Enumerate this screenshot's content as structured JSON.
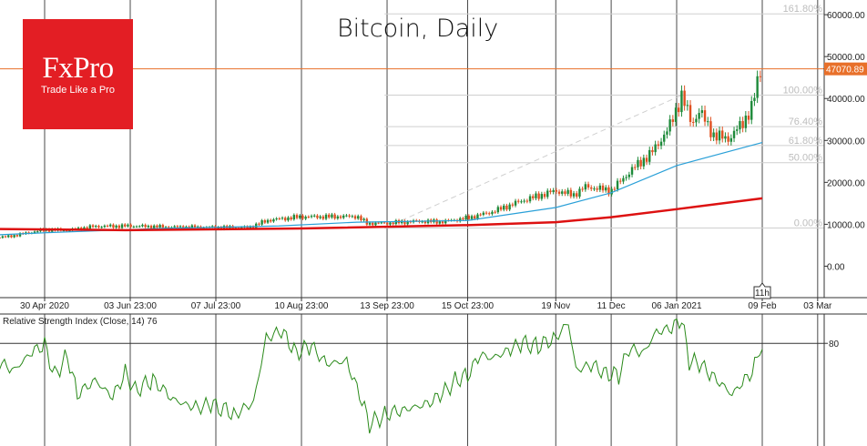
{
  "title": "Bitcoin, Daily",
  "logo": {
    "brand": "FxPro",
    "tagline": "Trade Like a Pro"
  },
  "colors": {
    "up": "#1e8a3a",
    "down": "#e05020",
    "price_line": "#e8702a",
    "ma_fast": "#2aa0d8",
    "ma_slow": "#dd1111",
    "rsi": "#2a8a1a",
    "logo_bg": "#e31e24"
  },
  "chart_data": [
    {
      "type": "candlestick",
      "symbol": "Bitcoin",
      "timeframe": "Daily",
      "x_tick_labels": [
        "30 Apr 2020",
        "03 Jun 23:00",
        "07 Jul 23:00",
        "10 Aug 23:00",
        "13 Sep 23:00",
        "15 Oct 23:00",
        "19 Nov",
        "11 Dec",
        "06 Jan 2021",
        "09 Feb",
        "03 Mar"
      ],
      "y_tick_values": [
        0,
        10000,
        20000,
        30000,
        40000,
        50000,
        60000
      ],
      "y_tick_labels": [
        "0.00",
        "10000.00",
        "20000.00",
        "30000.00",
        "40000.00",
        "50000.00",
        "60000.00"
      ],
      "ylim": [
        -7500,
        63500
      ],
      "current_price": 47070.89,
      "current_price_label": "47070.89",
      "time_marker": "11h",
      "fibonacci": {
        "levels": [
          {
            "label": "0.00%",
            "value": 9100
          },
          {
            "label": "50.00%",
            "value": 24700
          },
          {
            "label": "61.80%",
            "value": 28800
          },
          {
            "label": "76.40%",
            "value": 33300
          },
          {
            "label": "100.00%",
            "value": 40800
          },
          {
            "label": "161.80%",
            "value": 60200
          }
        ]
      },
      "close_series": [
        {
          "d": "2020-03-20",
          "v": 6700
        },
        {
          "d": "2020-04-01",
          "v": 6800
        },
        {
          "d": "2020-04-15",
          "v": 7000
        },
        {
          "d": "2020-04-30",
          "v": 8700
        },
        {
          "d": "2020-05-10",
          "v": 8600
        },
        {
          "d": "2020-05-20",
          "v": 9500
        },
        {
          "d": "2020-06-03",
          "v": 9600
        },
        {
          "d": "2020-06-20",
          "v": 9300
        },
        {
          "d": "2020-07-07",
          "v": 9250
        },
        {
          "d": "2020-07-20",
          "v": 9200
        },
        {
          "d": "2020-07-28",
          "v": 11000
        },
        {
          "d": "2020-08-10",
          "v": 11800
        },
        {
          "d": "2020-08-20",
          "v": 11800
        },
        {
          "d": "2020-09-01",
          "v": 11900
        },
        {
          "d": "2020-09-05",
          "v": 10200
        },
        {
          "d": "2020-09-13",
          "v": 10300
        },
        {
          "d": "2020-09-25",
          "v": 10700
        },
        {
          "d": "2020-10-05",
          "v": 10600
        },
        {
          "d": "2020-10-15",
          "v": 11500
        },
        {
          "d": "2020-10-25",
          "v": 13000
        },
        {
          "d": "2020-11-05",
          "v": 15500
        },
        {
          "d": "2020-11-19",
          "v": 18000
        },
        {
          "d": "2020-11-26",
          "v": 17000
        },
        {
          "d": "2020-12-01",
          "v": 19000
        },
        {
          "d": "2020-12-11",
          "v": 18000
        },
        {
          "d": "2020-12-20",
          "v": 23500
        },
        {
          "d": "2020-12-27",
          "v": 27000
        },
        {
          "d": "2021-01-03",
          "v": 33000
        },
        {
          "d": "2021-01-08",
          "v": 40700
        },
        {
          "d": "2021-01-12",
          "v": 34000
        },
        {
          "d": "2021-01-15",
          "v": 37000
        },
        {
          "d": "2021-01-21",
          "v": 31000
        },
        {
          "d": "2021-01-27",
          "v": 30500
        },
        {
          "d": "2021-02-01",
          "v": 34000
        },
        {
          "d": "2021-02-05",
          "v": 38000
        },
        {
          "d": "2021-02-08",
          "v": 46500
        },
        {
          "d": "2021-02-09",
          "v": 47070.89
        }
      ],
      "ma_fast_series": [
        {
          "d": "2020-03-20",
          "v": 6900
        },
        {
          "d": "2020-05-01",
          "v": 8000
        },
        {
          "d": "2020-06-15",
          "v": 9000
        },
        {
          "d": "2020-08-01",
          "v": 9600
        },
        {
          "d": "2020-09-01",
          "v": 10500
        },
        {
          "d": "2020-10-15",
          "v": 10900
        },
        {
          "d": "2020-11-19",
          "v": 14000
        },
        {
          "d": "2020-12-11",
          "v": 17500
        },
        {
          "d": "2021-01-06",
          "v": 24000
        },
        {
          "d": "2021-02-09",
          "v": 29500
        }
      ],
      "ma_slow_series": [
        {
          "d": "2020-03-20",
          "v": 9000
        },
        {
          "d": "2020-06-01",
          "v": 8600
        },
        {
          "d": "2020-08-10",
          "v": 9000
        },
        {
          "d": "2020-10-15",
          "v": 9800
        },
        {
          "d": "2020-11-19",
          "v": 10500
        },
        {
          "d": "2020-12-11",
          "v": 11700
        },
        {
          "d": "2021-01-06",
          "v": 13600
        },
        {
          "d": "2021-02-09",
          "v": 16200
        }
      ]
    },
    {
      "type": "line",
      "title": "Relative Strength Index (Close, 14) 76",
      "ylim": [
        10,
        100
      ],
      "level": 80,
      "level_label": "80",
      "series": [
        {
          "d": "2020-03-20",
          "v": 45
        },
        {
          "d": "2020-03-27",
          "v": 58
        },
        {
          "d": "2020-04-03",
          "v": 60
        },
        {
          "d": "2020-04-10",
          "v": 68
        },
        {
          "d": "2020-04-18",
          "v": 62
        },
        {
          "d": "2020-04-25",
          "v": 74
        },
        {
          "d": "2020-04-30",
          "v": 79
        },
        {
          "d": "2020-05-04",
          "v": 58
        },
        {
          "d": "2020-05-09",
          "v": 72
        },
        {
          "d": "2020-05-13",
          "v": 45
        },
        {
          "d": "2020-05-20",
          "v": 55
        },
        {
          "d": "2020-05-27",
          "v": 43
        },
        {
          "d": "2020-06-01",
          "v": 60
        },
        {
          "d": "2020-06-05",
          "v": 48
        },
        {
          "d": "2020-06-12",
          "v": 55
        },
        {
          "d": "2020-06-20",
          "v": 42
        },
        {
          "d": "2020-06-28",
          "v": 36
        },
        {
          "d": "2020-07-05",
          "v": 38
        },
        {
          "d": "2020-07-15",
          "v": 32
        },
        {
          "d": "2020-07-22",
          "v": 40
        },
        {
          "d": "2020-07-27",
          "v": 84
        },
        {
          "d": "2020-08-02",
          "v": 88
        },
        {
          "d": "2020-08-08",
          "v": 74
        },
        {
          "d": "2020-08-14",
          "v": 78
        },
        {
          "d": "2020-08-20",
          "v": 66
        },
        {
          "d": "2020-08-28",
          "v": 68
        },
        {
          "d": "2020-09-03",
          "v": 40
        },
        {
          "d": "2020-09-06",
          "v": 25
        },
        {
          "d": "2020-09-13",
          "v": 32
        },
        {
          "d": "2020-09-20",
          "v": 35
        },
        {
          "d": "2020-09-28",
          "v": 38
        },
        {
          "d": "2020-10-05",
          "v": 45
        },
        {
          "d": "2020-10-10",
          "v": 55
        },
        {
          "d": "2020-10-15",
          "v": 58
        },
        {
          "d": "2020-10-20",
          "v": 72
        },
        {
          "d": "2020-10-25",
          "v": 70
        },
        {
          "d": "2020-11-01",
          "v": 76
        },
        {
          "d": "2020-11-06",
          "v": 80
        },
        {
          "d": "2020-11-12",
          "v": 78
        },
        {
          "d": "2020-11-19",
          "v": 84
        },
        {
          "d": "2020-11-24",
          "v": 94
        },
        {
          "d": "2020-11-27",
          "v": 62
        },
        {
          "d": "2020-12-03",
          "v": 65
        },
        {
          "d": "2020-12-09",
          "v": 60
        },
        {
          "d": "2020-12-14",
          "v": 58
        },
        {
          "d": "2020-12-18",
          "v": 76
        },
        {
          "d": "2020-12-24",
          "v": 74
        },
        {
          "d": "2020-12-29",
          "v": 88
        },
        {
          "d": "2021-01-04",
          "v": 90
        },
        {
          "d": "2021-01-08",
          "v": 96
        },
        {
          "d": "2021-01-11",
          "v": 68
        },
        {
          "d": "2021-01-15",
          "v": 66
        },
        {
          "d": "2021-01-20",
          "v": 58
        },
        {
          "d": "2021-01-24",
          "v": 52
        },
        {
          "d": "2021-01-28",
          "v": 45
        },
        {
          "d": "2021-02-02",
          "v": 55
        },
        {
          "d": "2021-02-05",
          "v": 60
        },
        {
          "d": "2021-02-07",
          "v": 70
        },
        {
          "d": "2021-02-08",
          "v": 78
        },
        {
          "d": "2021-02-09",
          "v": 76
        }
      ]
    }
  ]
}
